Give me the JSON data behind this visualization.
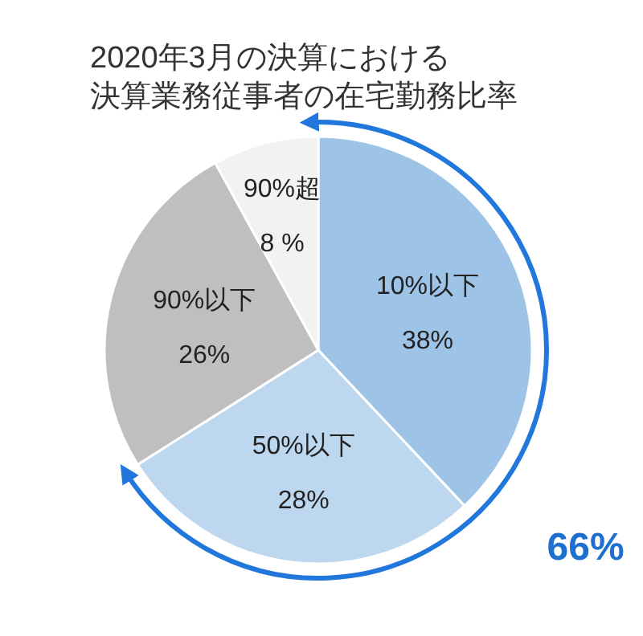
{
  "chart_data": {
    "type": "pie",
    "title": [
      "2020年3月の決算における",
      "決算業務従事者の在宅勤務比率"
    ],
    "categories": [
      "10%以下",
      "50%以下",
      "90%以下",
      "90%超"
    ],
    "values": [
      38,
      28,
      26,
      8
    ],
    "value_labels": [
      "38%",
      "28%",
      "26%",
      "8 %"
    ],
    "colors": [
      "#9dc3e6",
      "#bdd7ee",
      "#bfbfbf",
      "#f2f2f2"
    ],
    "annotations": [
      "66%"
    ]
  }
}
